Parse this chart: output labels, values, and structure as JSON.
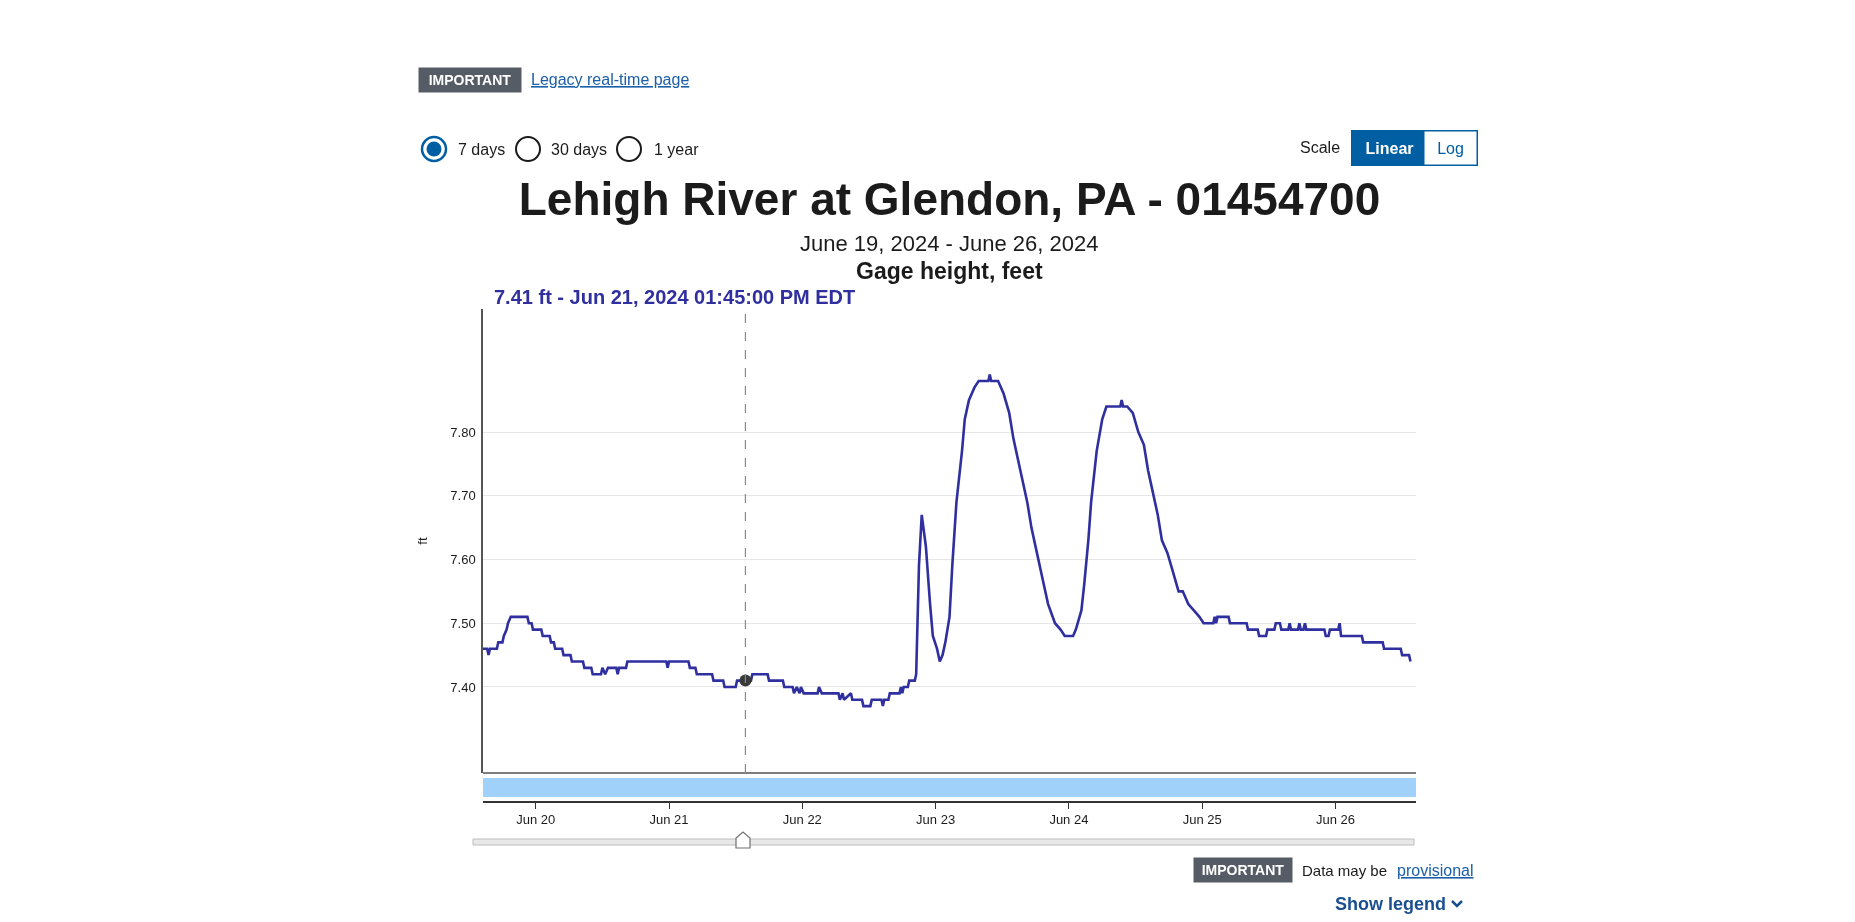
{
  "chart_data": {
    "type": "line",
    "title": "Lehigh River at Glendon, PA - 01454700",
    "subtitle": "June 19, 2024 - June 26, 2024",
    "ylabel": "ft",
    "annotations": [
      "7.41 ft - Jun 21, 2024 01:45:00 PM EDT",
      "Gage height, feet",
      "IMPORTANT",
      "Legacy real-time page",
      "7 days",
      "30 days",
      "1 year",
      "Scale",
      "Linear",
      "Log",
      "IMPORTANT",
      "Data may be",
      "provisional",
      "Show legend"
    ],
    "x": [
      "2024-06-19T14:30",
      "2024-06-19T15:15",
      "2024-06-19T15:30",
      "2024-06-19T15:45",
      "2024-06-19T17:00",
      "2024-06-19T17:15",
      "2024-06-19T18:00",
      "2024-06-19T18:15",
      "2024-06-19T18:45",
      "2024-06-19T19:00",
      "2024-06-19T19:30",
      "2024-06-19T22:30",
      "2024-06-19T22:45",
      "2024-06-19T23:15",
      "2024-06-19T23:30",
      "2024-06-20T01:00",
      "2024-06-20T01:15",
      "2024-06-20T02:30",
      "2024-06-20T02:45",
      "2024-06-20T03:15",
      "2024-06-20T03:30",
      "2024-06-20T04:45",
      "2024-06-20T05:00",
      "2024-06-20T06:15",
      "2024-06-20T06:30",
      "2024-06-20T08:30",
      "2024-06-20T08:45",
      "2024-06-20T10:00",
      "2024-06-20T10:15",
      "2024-06-20T11:45",
      "2024-06-20T12:00",
      "2024-06-20T12:30",
      "2024-06-20T13:00",
      "2024-06-20T14:30",
      "2024-06-20T14:45",
      "2024-06-20T15:00",
      "2024-06-20T16:15",
      "2024-06-20T16:30",
      "2024-06-20T23:30",
      "2024-06-20T23:45",
      "2024-06-21T00:00",
      "2024-06-21T03:30",
      "2024-06-21T03:45",
      "2024-06-21T04:45",
      "2024-06-21T05:00",
      "2024-06-21T07:45",
      "2024-06-21T08:00",
      "2024-06-21T09:45",
      "2024-06-21T10:00",
      "2024-06-21T12:00",
      "2024-06-21T12:15",
      "2024-06-21T14:45",
      "2024-06-21T15:00",
      "2024-06-21T17:45",
      "2024-06-21T18:00",
      "2024-06-21T20:30",
      "2024-06-21T20:45",
      "2024-06-21T22:15",
      "2024-06-21T22:30",
      "2024-06-21T23:00",
      "2024-06-21T23:30",
      "2024-06-21T23:45",
      "2024-06-22T00:15",
      "2024-06-22T02:45",
      "2024-06-22T03:00",
      "2024-06-22T03:30",
      "2024-06-22T06:30",
      "2024-06-22T06:45",
      "2024-06-22T07:15",
      "2024-06-22T07:30",
      "2024-06-22T08:45",
      "2024-06-22T09:00",
      "2024-06-22T10:45",
      "2024-06-22T11:00",
      "2024-06-22T12:15",
      "2024-06-22T12:30",
      "2024-06-22T14:15",
      "2024-06-22T14:30",
      "2024-06-22T14:45",
      "2024-06-22T15:30",
      "2024-06-22T15:45",
      "2024-06-22T17:30",
      "2024-06-22T17:45",
      "2024-06-22T18:00",
      "2024-06-22T18:15",
      "2024-06-22T19:00",
      "2024-06-22T19:15",
      "2024-06-22T20:15",
      "2024-06-22T20:30",
      "2024-06-22T21:00",
      "2024-06-22T21:30",
      "2024-06-22T22:15",
      "2024-06-22T23:00",
      "2024-06-22T23:30",
      "2024-06-23T00:15",
      "2024-06-23T00:45",
      "2024-06-23T01:15",
      "2024-06-23T01:45",
      "2024-06-23T02:30",
      "2024-06-23T03:00",
      "2024-06-23T03:45",
      "2024-06-23T04:45",
      "2024-06-23T05:15",
      "2024-06-23T06:00",
      "2024-06-23T07:00",
      "2024-06-23T07:45",
      "2024-06-23T09:30",
      "2024-06-23T09:45",
      "2024-06-23T10:00",
      "2024-06-23T11:15",
      "2024-06-23T12:15",
      "2024-06-23T13:15",
      "2024-06-23T14:00",
      "2024-06-23T14:45",
      "2024-06-23T15:45",
      "2024-06-23T16:30",
      "2024-06-23T17:15",
      "2024-06-23T18:15",
      "2024-06-23T19:00",
      "2024-06-23T20:15",
      "2024-06-23T21:30",
      "2024-06-23T22:30",
      "2024-06-23T23:15",
      "2024-06-24T00:45",
      "2024-06-24T01:15",
      "2024-06-24T02:15",
      "2024-06-24T02:45",
      "2024-06-24T03:30",
      "2024-06-24T04:00",
      "2024-06-24T05:00",
      "2024-06-24T06:00",
      "2024-06-24T06:45",
      "2024-06-24T09:15",
      "2024-06-24T09:30",
      "2024-06-24T09:45",
      "2024-06-24T10:30",
      "2024-06-24T11:30",
      "2024-06-24T12:30",
      "2024-06-24T13:30",
      "2024-06-24T14:15",
      "2024-06-24T15:00",
      "2024-06-24T16:00",
      "2024-06-24T16:45",
      "2024-06-24T17:45",
      "2024-06-24T18:45",
      "2024-06-24T19:45",
      "2024-06-24T20:30",
      "2024-06-24T21:30",
      "2024-06-24T22:30",
      "2024-06-24T23:30",
      "2024-06-25T00:15",
      "2024-06-25T02:00",
      "2024-06-25T02:15",
      "2024-06-25T02:30",
      "2024-06-25T02:45",
      "2024-06-25T04:45",
      "2024-06-25T05:00",
      "2024-06-25T08:00",
      "2024-06-25T08:15",
      "2024-06-25T10:00",
      "2024-06-25T10:15",
      "2024-06-25T11:30",
      "2024-06-25T11:45",
      "2024-06-25T13:00",
      "2024-06-25T13:15",
      "2024-06-25T14:00",
      "2024-06-25T14:15",
      "2024-06-25T15:30",
      "2024-06-25T15:45",
      "2024-06-25T16:00",
      "2024-06-25T17:15",
      "2024-06-25T17:30",
      "2024-06-25T17:45",
      "2024-06-25T18:15",
      "2024-06-25T18:30",
      "2024-06-25T18:45",
      "2024-06-25T22:00",
      "2024-06-25T22:15",
      "2024-06-25T22:45",
      "2024-06-25T23:00",
      "2024-06-26T00:30",
      "2024-06-26T00:45",
      "2024-06-26T01:00",
      "2024-06-26T04:45",
      "2024-06-26T05:00",
      "2024-06-26T08:30",
      "2024-06-26T08:45",
      "2024-06-26T11:45",
      "2024-06-26T12:00",
      "2024-06-26T13:15",
      "2024-06-26T13:30"
    ],
    "series": [
      {
        "color": "#2f2f9f",
        "values": [
          7.46,
          7.46,
          7.45,
          7.46,
          7.46,
          7.47,
          7.47,
          7.48,
          7.49,
          7.5,
          7.51,
          7.51,
          7.5,
          7.5,
          7.49,
          7.49,
          7.48,
          7.48,
          7.47,
          7.47,
          7.46,
          7.46,
          7.45,
          7.45,
          7.44,
          7.44,
          7.43,
          7.43,
          7.42,
          7.42,
          7.43,
          7.42,
          7.43,
          7.43,
          7.42,
          7.43,
          7.43,
          7.44,
          7.44,
          7.43,
          7.44,
          7.44,
          7.43,
          7.43,
          7.42,
          7.42,
          7.41,
          7.41,
          7.4,
          7.4,
          7.41,
          7.41,
          7.42,
          7.42,
          7.41,
          7.41,
          7.4,
          7.4,
          7.39,
          7.4,
          7.39,
          7.4,
          7.39,
          7.39,
          7.4,
          7.39,
          7.39,
          7.38,
          7.39,
          7.38,
          7.39,
          7.38,
          7.38,
          7.37,
          7.37,
          7.38,
          7.38,
          7.37,
          7.38,
          7.38,
          7.39,
          7.39,
          7.4,
          7.39,
          7.4,
          7.4,
          7.41,
          7.41,
          7.42,
          7.59,
          7.67,
          7.62,
          7.53,
          7.48,
          7.46,
          7.44,
          7.45,
          7.47,
          7.51,
          7.59,
          7.69,
          7.77,
          7.82,
          7.85,
          7.87,
          7.88,
          7.88,
          7.89,
          7.88,
          7.88,
          7.86,
          7.83,
          7.79,
          7.76,
          7.72,
          7.69,
          7.65,
          7.61,
          7.58,
          7.53,
          7.5,
          7.49,
          7.48,
          7.48,
          7.49,
          7.52,
          7.56,
          7.63,
          7.69,
          7.77,
          7.82,
          7.84,
          7.84,
          7.85,
          7.84,
          7.84,
          7.83,
          7.8,
          7.78,
          7.74,
          7.71,
          7.67,
          7.63,
          7.61,
          7.58,
          7.55,
          7.55,
          7.53,
          7.52,
          7.51,
          7.5,
          7.5,
          7.51,
          7.5,
          7.51,
          7.51,
          7.5,
          7.5,
          7.49,
          7.49,
          7.48,
          7.48,
          7.49,
          7.49,
          7.5,
          7.5,
          7.49,
          7.49,
          7.5,
          7.49,
          7.49,
          7.5,
          7.49,
          7.49,
          7.5,
          7.49,
          7.49,
          7.48,
          7.48,
          7.49,
          7.49,
          7.5,
          7.48,
          7.48,
          7.47,
          7.47,
          7.46,
          7.46,
          7.45,
          7.45,
          7.44
        ]
      },
      {
        "type": "scatter",
        "x": [
          "2024-06-21T13:45"
        ],
        "color": "#3a3a3a",
        "marker": "circle",
        "values": [
          7.41
        ]
      }
    ],
    "xlim": [
      "2024-06-19T14:30",
      "2024-06-26T14:30"
    ],
    "ylim": [
      7.265,
      7.993
    ],
    "xticks": [
      {
        "value": "2024-06-20",
        "label": "Jun 20"
      },
      {
        "value": "2024-06-21",
        "label": "Jun 21"
      },
      {
        "value": "2024-06-22",
        "label": "Jun 22"
      },
      {
        "value": "2024-06-23",
        "label": "Jun 23"
      },
      {
        "value": "2024-06-24",
        "label": "Jun 24"
      },
      {
        "value": "2024-06-25",
        "label": "Jun 25"
      },
      {
        "value": "2024-06-26",
        "label": "Jun 26"
      }
    ],
    "yticks": [
      {
        "value": 7.4,
        "label": "7.40"
      },
      {
        "value": 7.5,
        "label": "7.50"
      },
      {
        "value": 7.6,
        "label": "7.60"
      },
      {
        "value": 7.7,
        "label": "7.70"
      },
      {
        "value": 7.8,
        "label": "7.80"
      }
    ],
    "grid": "y",
    "ref_lines": [
      {
        "axis": "x",
        "value": "2024-06-21T13:45",
        "color": "#8a8a8a",
        "line_style": "dashed"
      }
    ]
  }
}
